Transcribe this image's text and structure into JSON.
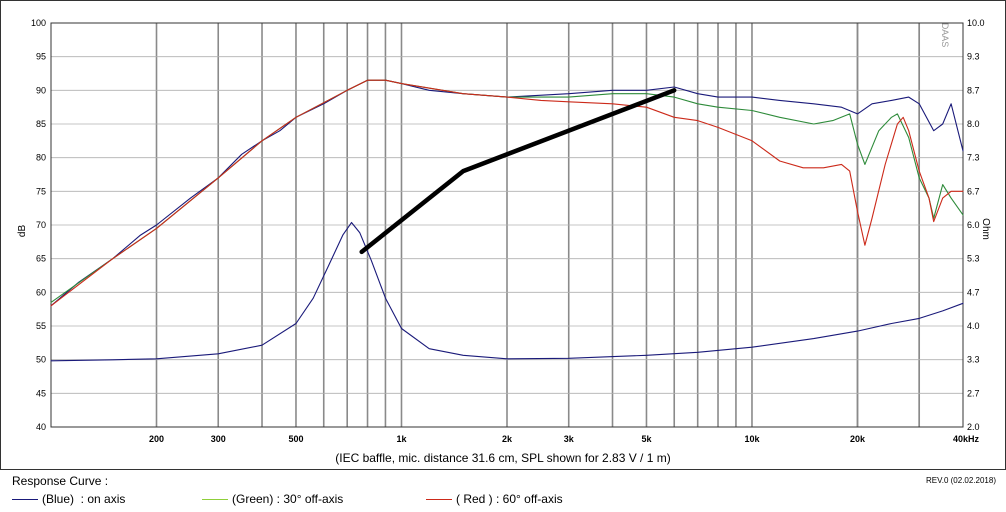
{
  "chart_data": {
    "type": "line",
    "title": "",
    "xlabel": "(IEC baffle, mic. distance 31.6 cm, SPL shown for 2.83 V / 1 m)",
    "ylabel_left": "dB",
    "ylabel_right": "Ohm",
    "watermark": "DAAS",
    "x_scale": "log",
    "xlim": [
      100,
      40000
    ],
    "ylim_left": [
      40,
      100
    ],
    "ylim_right": [
      2.0,
      10.0
    ],
    "x_ticks": [
      {
        "value": 200,
        "label": "200"
      },
      {
        "value": 300,
        "label": "300"
      },
      {
        "value": 500,
        "label": "500"
      },
      {
        "value": 1000,
        "label": "1k"
      },
      {
        "value": 2000,
        "label": "2k"
      },
      {
        "value": 3000,
        "label": "3k"
      },
      {
        "value": 5000,
        "label": "5k"
      },
      {
        "value": 10000,
        "label": "10k"
      },
      {
        "value": 20000,
        "label": "20k"
      },
      {
        "value": 40000,
        "label": "40kHz"
      }
    ],
    "y_ticks_left": [
      "100",
      "95",
      "90",
      "85",
      "80",
      "75",
      "70",
      "65",
      "60",
      "55",
      "50",
      "45",
      "40"
    ],
    "y_ticks_right": [
      "10.0",
      "9.3",
      "8.7",
      "8.0",
      "7.3",
      "6.7",
      "6.0",
      "5.3",
      "4.7",
      "4.0",
      "3.3",
      "2.7",
      "2.0"
    ],
    "grid": true,
    "series": [
      {
        "name": "(Blue)  : on axis",
        "color": "#1a1a7a",
        "axis": "left",
        "points": [
          [
            100,
            58
          ],
          [
            120,
            61.5
          ],
          [
            150,
            65
          ],
          [
            180,
            68.5
          ],
          [
            200,
            70
          ],
          [
            250,
            74
          ],
          [
            300,
            77
          ],
          [
            350,
            80.5
          ],
          [
            400,
            82.5
          ],
          [
            450,
            84
          ],
          [
            500,
            86
          ],
          [
            600,
            88
          ],
          [
            700,
            90
          ],
          [
            800,
            91.5
          ],
          [
            900,
            91.5
          ],
          [
            1000,
            91
          ],
          [
            1200,
            90
          ],
          [
            1500,
            89.5
          ],
          [
            2000,
            89
          ],
          [
            3000,
            89.5
          ],
          [
            4000,
            90
          ],
          [
            5000,
            90
          ],
          [
            6000,
            90.5
          ],
          [
            7000,
            89.5
          ],
          [
            8000,
            89
          ],
          [
            10000,
            89
          ],
          [
            12000,
            88.5
          ],
          [
            15000,
            88
          ],
          [
            18000,
            87.5
          ],
          [
            20000,
            86.5
          ],
          [
            22000,
            88
          ],
          [
            25000,
            88.5
          ],
          [
            28000,
            89
          ],
          [
            30000,
            88
          ],
          [
            33000,
            84
          ],
          [
            35000,
            85
          ],
          [
            37000,
            88
          ],
          [
            40000,
            81
          ]
        ]
      },
      {
        "name": "(Green) : 30° off-axis",
        "color": "#2e8b3a",
        "axis": "left",
        "points": [
          [
            100,
            58.5
          ],
          [
            150,
            65
          ],
          [
            200,
            69.5
          ],
          [
            300,
            77
          ],
          [
            400,
            82.5
          ],
          [
            500,
            86
          ],
          [
            700,
            90
          ],
          [
            800,
            91.5
          ],
          [
            900,
            91.5
          ],
          [
            1000,
            91
          ],
          [
            1500,
            89.5
          ],
          [
            2000,
            89
          ],
          [
            3000,
            89
          ],
          [
            4000,
            89.5
          ],
          [
            5000,
            89.5
          ],
          [
            6000,
            89
          ],
          [
            7000,
            88
          ],
          [
            8000,
            87.5
          ],
          [
            10000,
            87
          ],
          [
            12000,
            86
          ],
          [
            15000,
            85
          ],
          [
            17000,
            85.5
          ],
          [
            19000,
            86.5
          ],
          [
            20000,
            82
          ],
          [
            21000,
            79
          ],
          [
            23000,
            84
          ],
          [
            25000,
            86
          ],
          [
            26000,
            86.5
          ],
          [
            28000,
            83
          ],
          [
            30000,
            77
          ],
          [
            32000,
            74
          ],
          [
            33000,
            71
          ],
          [
            35000,
            76
          ],
          [
            37000,
            74
          ],
          [
            40000,
            71.5
          ]
        ]
      },
      {
        "name": "( Red ) : 60° off-axis",
        "color": "#cc2a1a",
        "axis": "left",
        "points": [
          [
            100,
            58
          ],
          [
            150,
            65
          ],
          [
            200,
            69.5
          ],
          [
            300,
            77
          ],
          [
            400,
            82.5
          ],
          [
            500,
            86
          ],
          [
            700,
            90
          ],
          [
            800,
            91.5
          ],
          [
            900,
            91.5
          ],
          [
            1000,
            91
          ],
          [
            1500,
            89.5
          ],
          [
            2000,
            89
          ],
          [
            2500,
            88.5
          ],
          [
            3000,
            88.3
          ],
          [
            4000,
            88
          ],
          [
            5000,
            87.5
          ],
          [
            6000,
            86
          ],
          [
            7000,
            85.5
          ],
          [
            8000,
            84.5
          ],
          [
            10000,
            82.5
          ],
          [
            12000,
            79.5
          ],
          [
            14000,
            78.5
          ],
          [
            16000,
            78.5
          ],
          [
            18000,
            79
          ],
          [
            19000,
            78
          ],
          [
            20000,
            72
          ],
          [
            21000,
            67
          ],
          [
            22000,
            71
          ],
          [
            24000,
            79
          ],
          [
            26000,
            85
          ],
          [
            27000,
            86
          ],
          [
            28000,
            84
          ],
          [
            30000,
            78
          ],
          [
            32000,
            74
          ],
          [
            33000,
            70.5
          ],
          [
            35000,
            74
          ],
          [
            37000,
            75
          ],
          [
            40000,
            75
          ]
        ]
      },
      {
        "name": "impedance",
        "color": "#1a1a7a",
        "axis": "right",
        "points": [
          [
            100,
            3.31
          ],
          [
            150,
            3.33
          ],
          [
            200,
            3.35
          ],
          [
            300,
            3.45
          ],
          [
            400,
            3.62
          ],
          [
            500,
            4.05
          ],
          [
            560,
            4.55
          ],
          [
            620,
            5.2
          ],
          [
            680,
            5.8
          ],
          [
            720,
            6.05
          ],
          [
            760,
            5.85
          ],
          [
            820,
            5.3
          ],
          [
            900,
            4.55
          ],
          [
            1000,
            3.95
          ],
          [
            1200,
            3.55
          ],
          [
            1500,
            3.42
          ],
          [
            2000,
            3.35
          ],
          [
            3000,
            3.36
          ],
          [
            5000,
            3.42
          ],
          [
            7000,
            3.48
          ],
          [
            10000,
            3.58
          ],
          [
            15000,
            3.75
          ],
          [
            20000,
            3.9
          ],
          [
            25000,
            4.05
          ],
          [
            30000,
            4.15
          ],
          [
            35000,
            4.3
          ],
          [
            40000,
            4.45
          ]
        ]
      },
      {
        "name": "overlay",
        "color": "#000000",
        "axis": "left",
        "points": [
          [
            770,
            66
          ],
          [
            1500,
            78
          ],
          [
            6000,
            90
          ]
        ]
      }
    ]
  },
  "legend": {
    "title": "Response Curve :",
    "items": [
      {
        "label": "(Blue)  : on axis",
        "color": "#1a1a7a"
      },
      {
        "label": "(Green) : 30° off-axis",
        "color": "#8fcf3a"
      },
      {
        "label": "( Red ) : 60° off-axis",
        "color": "#cc2a1a"
      }
    ],
    "revision": "REV.0 (02.02.2018)"
  }
}
